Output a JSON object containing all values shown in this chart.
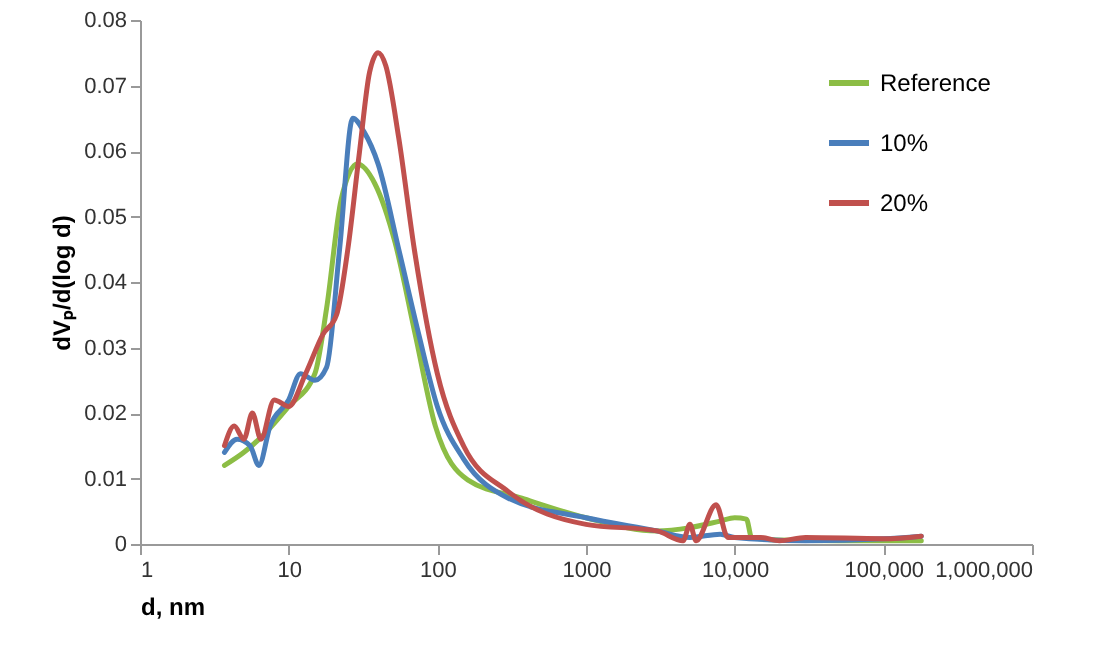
{
  "chart_data": {
    "type": "line",
    "xlabel": "d, nm",
    "ylabel": "dVₚ/d(log d)",
    "log": "x",
    "xlim": [
      1,
      1000000
    ],
    "ylim": [
      0,
      0.08
    ],
    "xticks": [
      1,
      10,
      100,
      1000,
      {
        "value": 10000,
        "label": "10,000"
      },
      {
        "value": 100000,
        "label": "100,000"
      },
      {
        "value": 1000000,
        "label": "1,000,000"
      }
    ],
    "yticks": [
      0,
      0.01,
      0.02,
      0.03,
      0.04,
      0.05,
      0.06,
      0.07,
      0.08
    ],
    "grid": false,
    "legend": "top right",
    "marker": "none",
    "line_style": "solid",
    "series": [
      {
        "name": "Reference",
        "color": "#8cbd45",
        "x": [
          3.7,
          5,
          7,
          10,
          15,
          18,
          22.5,
          29,
          38,
          52,
          71,
          97,
          160,
          370,
          1000,
          3000,
          5000,
          8000,
          10000,
          12000,
          13000,
          20000,
          50000,
          100000,
          180000
        ],
        "values": [
          0.012,
          0.014,
          0.017,
          0.021,
          0.026,
          0.036,
          0.0525,
          0.058,
          0.055,
          0.046,
          0.032,
          0.018,
          0.0098,
          0.007,
          0.004,
          0.002,
          0.0025,
          0.0035,
          0.004,
          0.0038,
          0.001,
          0.0006,
          0.0005,
          0.0005,
          0.0005
        ]
      },
      {
        "name": "10%",
        "color": "#4a7ebb",
        "x": [
          3.7,
          4.5,
          5.5,
          6.3,
          7.5,
          10,
          12,
          15,
          18,
          22,
          27,
          32,
          40,
          55,
          75,
          100,
          150,
          300,
          1000,
          3000,
          5000,
          8000,
          10000,
          30000,
          100000,
          180000
        ],
        "values": [
          0.014,
          0.016,
          0.015,
          0.012,
          0.018,
          0.022,
          0.026,
          0.025,
          0.027,
          0.045,
          0.065,
          0.063,
          0.058,
          0.045,
          0.032,
          0.021,
          0.013,
          0.007,
          0.004,
          0.002,
          0.001,
          0.0015,
          0.001,
          0.0005,
          0.0008,
          0.0012
        ]
      },
      {
        "name": "20%",
        "color": "#c0504d",
        "x": [
          3.7,
          4.3,
          5,
          5.7,
          6.5,
          8,
          10,
          13,
          17,
          21,
          25,
          30,
          35,
          40,
          45,
          55,
          70,
          100,
          150,
          300,
          1000,
          3000,
          4500,
          5000,
          5500,
          7500,
          9000,
          15000,
          20000,
          30000,
          100000,
          180000
        ],
        "values": [
          0.015,
          0.018,
          0.016,
          0.02,
          0.016,
          0.022,
          0.021,
          0.026,
          0.032,
          0.035,
          0.045,
          0.06,
          0.072,
          0.075,
          0.073,
          0.062,
          0.045,
          0.026,
          0.015,
          0.008,
          0.003,
          0.002,
          0.0005,
          0.003,
          0.0005,
          0.006,
          0.001,
          0.001,
          0.0005,
          0.001,
          0.0008,
          0.0012
        ]
      }
    ]
  }
}
